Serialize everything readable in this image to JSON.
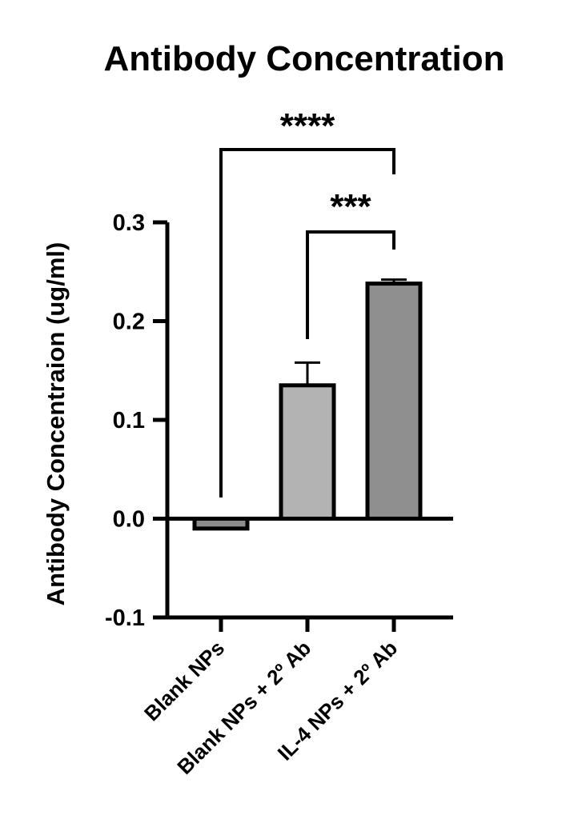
{
  "chart_data": {
    "type": "bar",
    "title": "Antibody Concentration",
    "xlabel": "",
    "ylabel": "Antibody Concentraion (ug/ml)",
    "ylim": [
      -0.1,
      0.3
    ],
    "yticks": [
      -0.1,
      0.0,
      0.1,
      0.2,
      0.3
    ],
    "ytick_labels": [
      "-0.1",
      "0.0",
      "0.1",
      "0.2",
      "0.3"
    ],
    "categories": [
      "Blank NPs",
      "Blank NPs + 2º Ab",
      "IL-4 NPs + 2º Ab"
    ],
    "values": [
      -0.01,
      0.135,
      0.238
    ],
    "error": [
      0.001,
      0.023,
      0.004
    ],
    "bar_colors": [
      "#8c8c8c",
      "#b3b3b3",
      "#8f8f8f"
    ],
    "grid": false,
    "significance": [
      {
        "from": 0,
        "to": 2,
        "label": "****"
      },
      {
        "from": 1,
        "to": 2,
        "label": "***"
      }
    ]
  }
}
